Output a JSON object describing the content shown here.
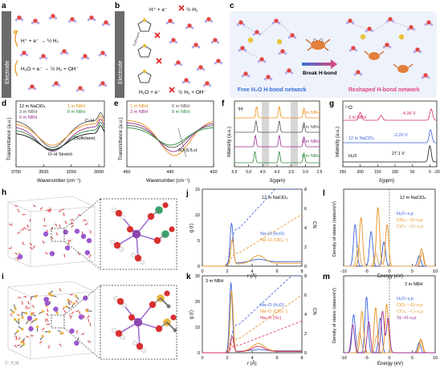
{
  "panel_letters": [
    "a",
    "b",
    "c",
    "d",
    "e",
    "f",
    "g",
    "h",
    "i",
    "j",
    "k",
    "l",
    "m"
  ],
  "a": {
    "electrode": "Electrode",
    "eq1": "H⁺ + e⁻ → ½ H₂",
    "eq2": "H₂O + e⁻ → ½ H₂ + OH⁻"
  },
  "b": {
    "electrode": "Electrode",
    "eq1": "H⁺ + e⁻",
    "eq1b": "½ H₂",
    "eq2": "H₂O + e⁻",
    "eq2b": "½ H₂ + OH⁻",
    "inner_label": "Sulfolane"
  },
  "c": {
    "left_label": "Free H₂O H-bond network",
    "arrow_label": "Break H-bond",
    "right_label": "Reshaped H-bond network",
    "left_color": "#3a6fd8",
    "right_color": "#e0467a"
  },
  "d": {
    "ylabel": "Transmittance (a.u.)",
    "xlabel": "Wavenumber (cm⁻¹)",
    "legend": [
      "12 m NaClO₄",
      "3 m NBH",
      "6 m NBH",
      "1 m NBH",
      "8 m NBH"
    ],
    "ticks": [
      "3750",
      "3500",
      "3250",
      "3000"
    ],
    "ann1": "C–H",
    "ann2": "(Sulfolane)",
    "ann3": "O–H Stretch"
  },
  "e": {
    "ylabel": "Transmittance (a.u.)",
    "xlabel": "Wavenumber (cm⁻¹)",
    "legend": [
      "1 m NBH",
      "3 m NBH",
      "6 m NBH",
      "8 m NBH"
    ],
    "ticks": [
      "460",
      "440",
      "420"
    ],
    "ann": "δO₂S:δ.ct"
  },
  "f": {
    "nucleus": "¹H",
    "ylabel": "Intensity (a.u.)",
    "xlabel": "δ(ppm)",
    "legend": [
      "1 m NBH",
      "3 m NBH",
      "6 m NBH",
      "8 m NBH"
    ],
    "ticks": [
      "5.5",
      "5.0",
      "4.5",
      "4.0",
      "3.5",
      "3.0",
      "2.5"
    ]
  },
  "g": {
    "nucleus": "¹⁷O",
    "ylabel": "Intensity (a.u.)",
    "xlabel": "δ(ppm)",
    "labels": [
      "3 m NBH",
      "12 m NaClO₄",
      "H₂O"
    ],
    "values": [
      "-4.38 V",
      "-2.20 V",
      "27.1 V"
    ],
    "ticks": [
      "250",
      "200",
      "150",
      "100",
      "50",
      "0",
      "-20"
    ]
  },
  "j": {
    "ylabel": "g (r)",
    "y2label": "CN",
    "xlabel": "r (Å)",
    "label": "12 m NaClO₄",
    "legend": [
      "Na–O (H₂O)",
      "Na–O (ClO₄⁻)"
    ],
    "yticks": [
      "0",
      "5",
      "10",
      "15"
    ],
    "y2ticks": [
      "0",
      "2",
      "4",
      "6",
      "8"
    ],
    "xticks": [
      "0",
      "2",
      "4",
      "6",
      "8"
    ]
  },
  "k": {
    "ylabel": "g (r)",
    "y2label": "CN",
    "xlabel": "r (Å)",
    "label": "3 m NBH",
    "legend": [
      "Na–O (H₂O)",
      "Na–O (ClO₄⁻)",
      "Na–O (SL)"
    ],
    "yticks": [
      "0",
      "10",
      "20",
      "30"
    ],
    "y2ticks": [
      "0",
      "2",
      "4",
      "6",
      "8"
    ],
    "xticks": [
      "0",
      "2",
      "4",
      "6",
      "8"
    ]
  },
  "l": {
    "ylabel": "Density of states (states/eV)",
    "xlabel": "Energy (eV)",
    "label": "12 m NaClO₄",
    "legend": [
      "H₂O–s,p",
      "ClO₄⁻–O–s,p",
      "ClO₄⁻–Cl–s,p"
    ],
    "xticks": [
      "-10",
      "-5",
      "0",
      "5",
      "10"
    ]
  },
  "m": {
    "ylabel": "Density of states (states/eV)",
    "xlabel": "Energy (eV)",
    "label": "3 m NBH",
    "legend": [
      "H₂O–s,p",
      "ClO₄⁻–O–s,p",
      "ClO₄⁻–Cl–s,p",
      "SL–O–s,p"
    ],
    "xticks": [
      "-10",
      "-5",
      "0",
      "5",
      "10"
    ]
  },
  "watermark": "© 大米",
  "colors": {
    "orange": "#e8901a",
    "gray": "#555555",
    "purple": "#9b2d8f",
    "green": "#2e8b3e",
    "blue": "#3a5fd8",
    "crimson": "#d62c5c",
    "tan": "#d9a35a"
  }
}
